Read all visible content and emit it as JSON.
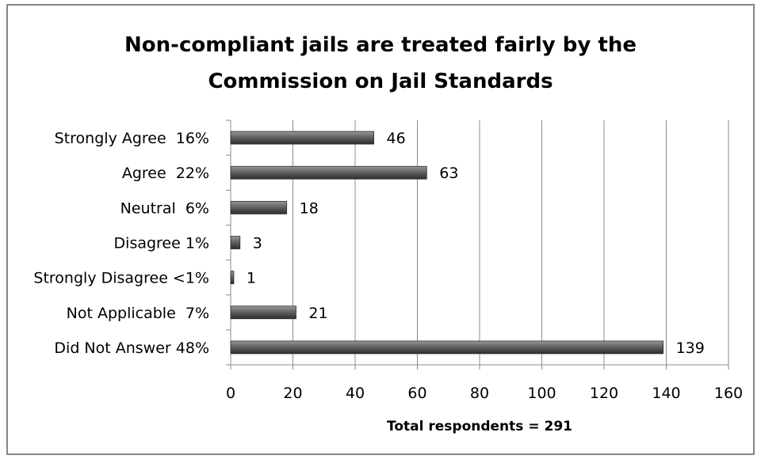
{
  "chart_data": {
    "type": "bar",
    "orientation": "horizontal",
    "title_line1": "Non-compliant jails are treated fairly by the",
    "title_line2": "Commission on Jail Standards",
    "xlabel": "Total respondents = 291",
    "ylabel": "",
    "categories": [
      "Strongly Agree  16%",
      "Agree  22%",
      "Neutral  6%",
      "Disagree 1%",
      "Strongly Disagree <1%",
      "Not Applicable  7%",
      "Did Not Answer 48%"
    ],
    "values": [
      46,
      63,
      18,
      3,
      1,
      21,
      139
    ],
    "data_labels": [
      "46",
      "63",
      "18",
      "3",
      "1",
      "21",
      "139"
    ],
    "xlim": [
      0,
      160
    ],
    "x_ticks": [
      "0",
      "20",
      "40",
      "60",
      "80",
      "100",
      "120",
      "140",
      "160"
    ],
    "x_tick_values": [
      0,
      20,
      40,
      60,
      80,
      100,
      120,
      140,
      160
    ],
    "grid": "vertical major gridlines",
    "legend": "none",
    "bar_color": "#595959"
  }
}
